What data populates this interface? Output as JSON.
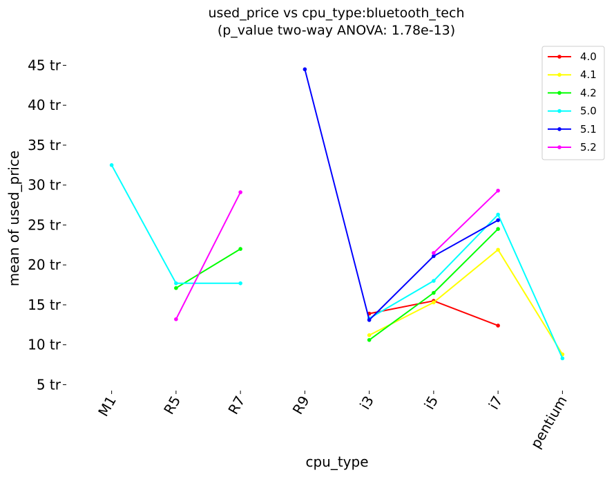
{
  "chart_data": {
    "type": "line",
    "title": "used_price vs cpu_type:bluetooth_tech",
    "subtitle": "(p_value two-way ANOVA: 1.78e-13)",
    "xlabel": "cpu_type",
    "ylabel": "mean of used_price",
    "categories": [
      "M1",
      "R5",
      "R7",
      "R9",
      "i3",
      "i5",
      "i7",
      "pentium"
    ],
    "y_unit_suffix": " tr",
    "y_ticks": [
      5,
      10,
      15,
      20,
      25,
      30,
      35,
      40,
      45
    ],
    "y_tick_labels": [
      "5 tr",
      "10 tr",
      "15 tr",
      "20 tr",
      "25 tr",
      "30 tr",
      "35 tr",
      "40 tr",
      "45 tr"
    ],
    "ylim": [
      5,
      48
    ],
    "grid": false,
    "legend_position": "top-right",
    "series": [
      {
        "name": "4.0",
        "color": "#ff0000",
        "values": [
          null,
          null,
          null,
          null,
          13.9,
          15.5,
          12.4,
          null
        ]
      },
      {
        "name": "4.1",
        "color": "#ffff00",
        "values": [
          null,
          null,
          null,
          null,
          11.2,
          15.3,
          21.9,
          8.8
        ]
      },
      {
        "name": "4.2",
        "color": "#00ff00",
        "values": [
          null,
          17.1,
          22.0,
          null,
          10.6,
          16.5,
          24.5,
          null
        ]
      },
      {
        "name": "5.0",
        "color": "#00ffff",
        "values": [
          32.5,
          17.7,
          17.7,
          null,
          13.3,
          18.0,
          26.3,
          8.3
        ]
      },
      {
        "name": "5.1",
        "color": "#0000ff",
        "values": [
          null,
          null,
          null,
          44.5,
          13.1,
          21.1,
          25.6,
          null
        ]
      },
      {
        "name": "5.2",
        "color": "#ff00ff",
        "values": [
          null,
          13.2,
          29.1,
          null,
          null,
          21.5,
          29.3,
          null
        ]
      }
    ]
  }
}
